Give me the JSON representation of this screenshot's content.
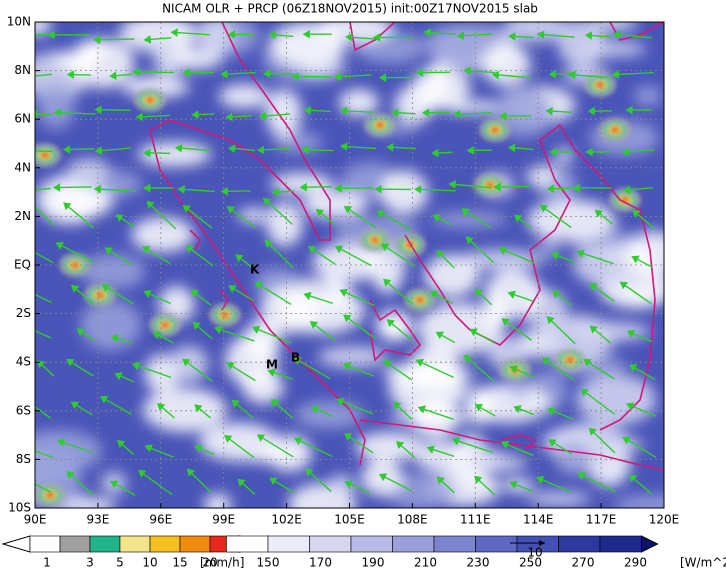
{
  "header": {
    "title": "NICAM OLR + PRCP (06Z18NOV2015) init:00Z17NOV2015 slab"
  },
  "map": {
    "lon_labels": [
      "90E",
      "93E",
      "96E",
      "99E",
      "102E",
      "105E",
      "108E",
      "111E",
      "114E",
      "117E",
      "120E"
    ],
    "lat_labels": [
      "10N",
      "8N",
      "6N",
      "4N",
      "2N",
      "EQ",
      "2S",
      "4S",
      "6S",
      "8S",
      "10S"
    ],
    "place_labels": [
      "K",
      "M",
      "B"
    ]
  },
  "precip_legend": {
    "labels": [
      "1",
      "3",
      "5",
      "10",
      "15",
      "20"
    ],
    "unit": "[mm/h]"
  },
  "olr_legend": {
    "labels": [
      "150",
      "170",
      "190",
      "210",
      "230",
      "250",
      "270",
      "290"
    ],
    "unit": "[W/m^2]"
  },
  "vector_reference": {
    "label": "10"
  }
}
